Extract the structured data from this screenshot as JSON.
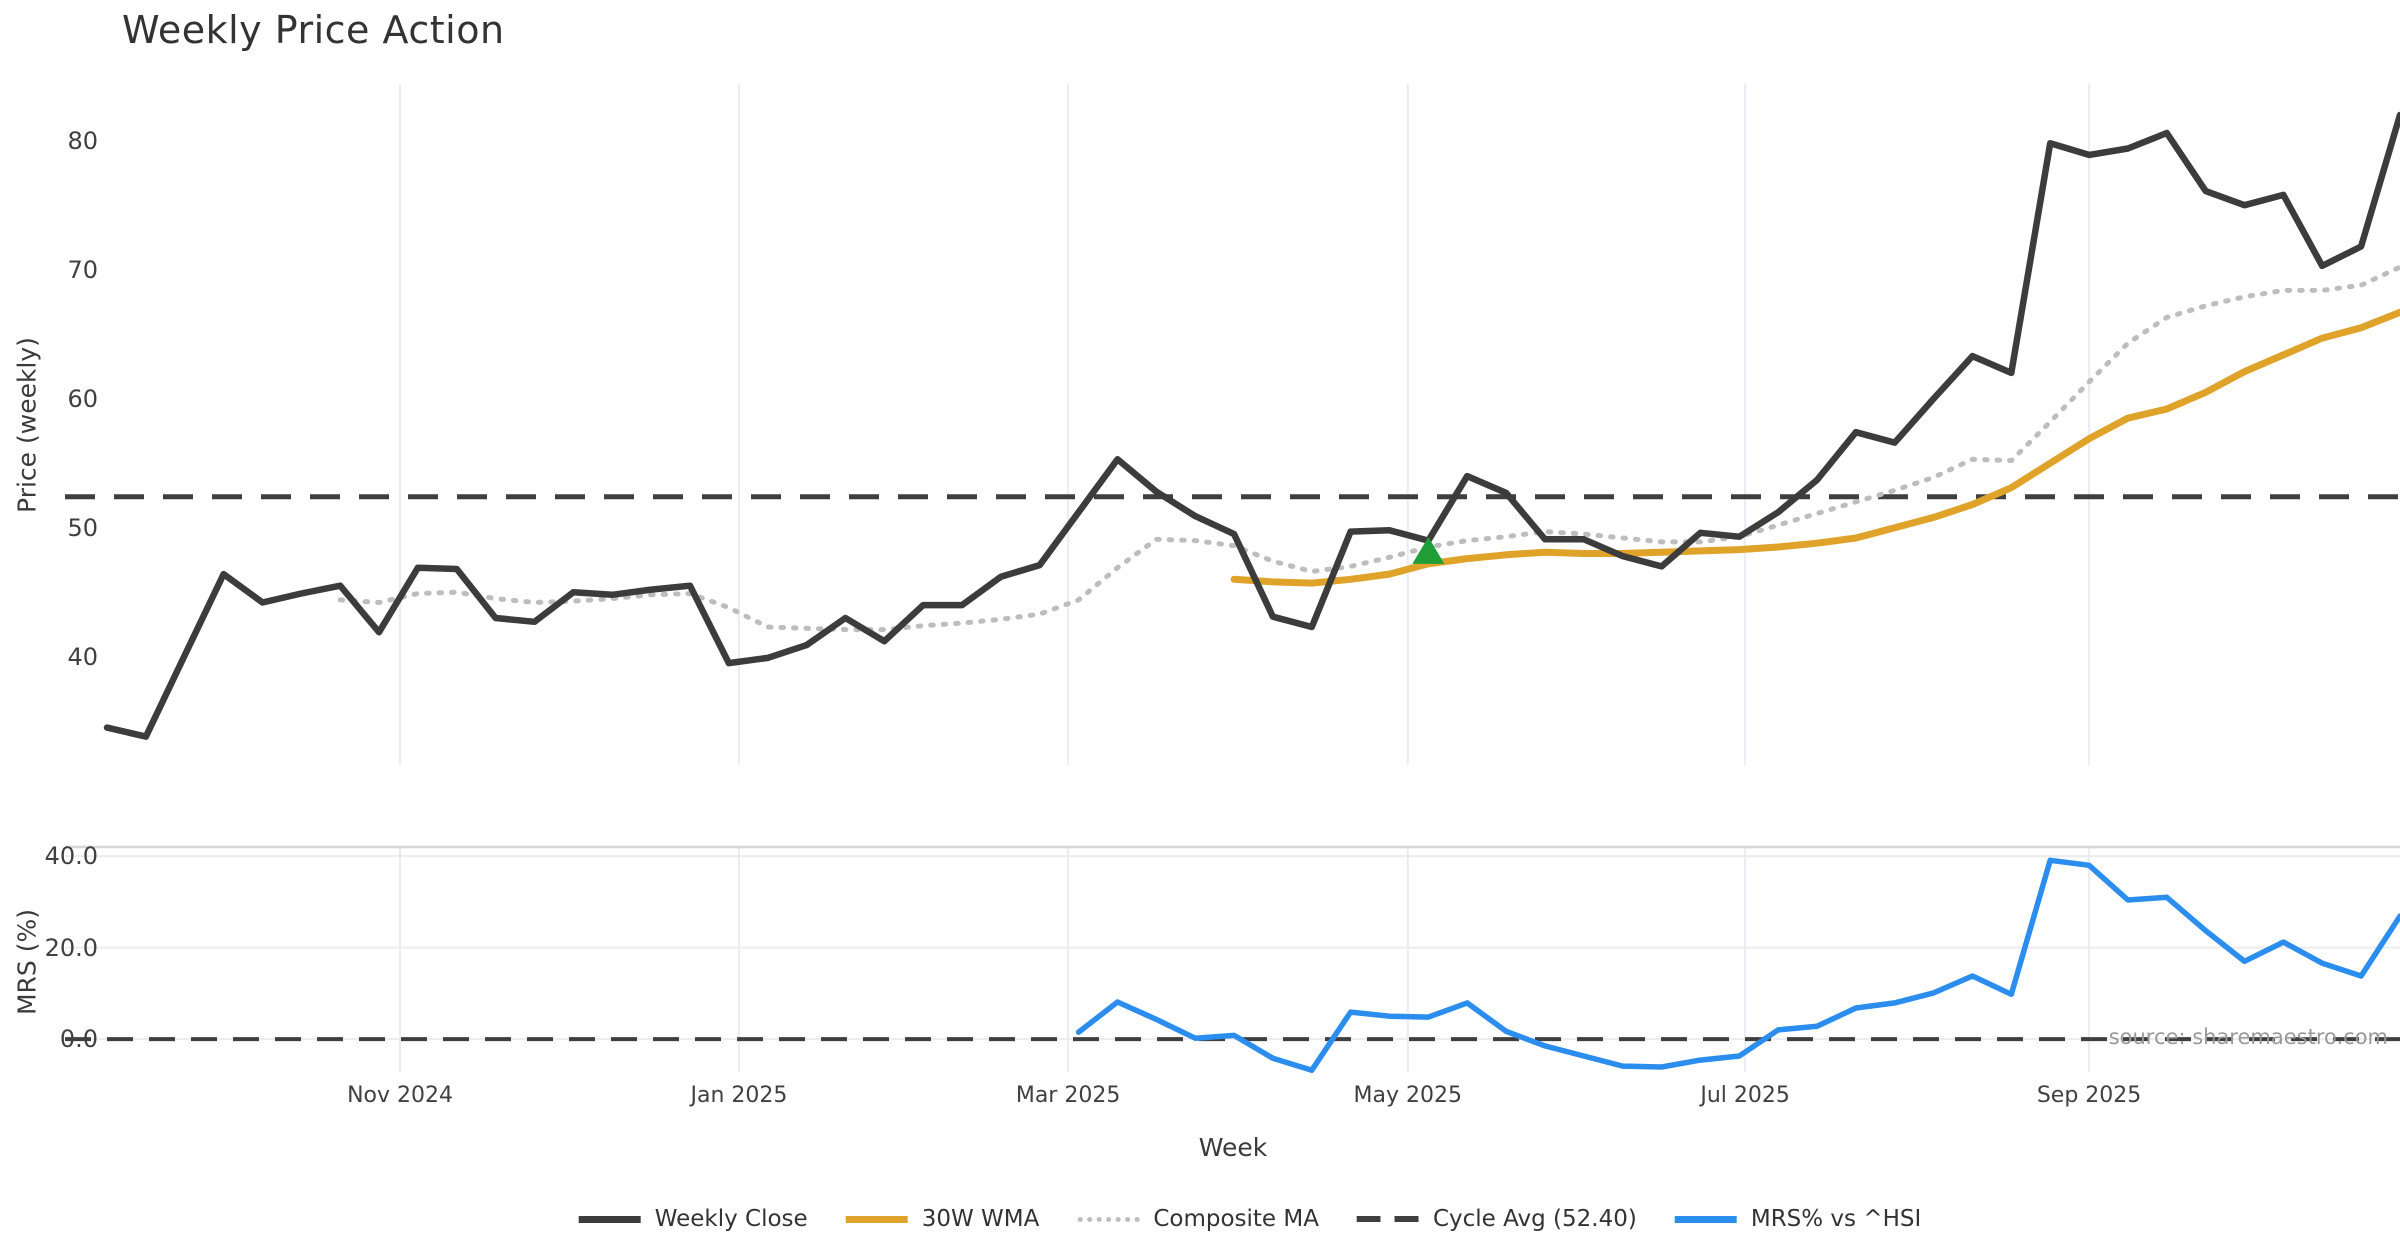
{
  "title": "Weekly Price Action",
  "watermark": "source: sharemaestro.com",
  "axes": {
    "price_axis_label": "Price (weekly)",
    "mrs_axis_label": "MRS (%)",
    "x_axis_label": "Week",
    "price_ticks": [
      80,
      70,
      60,
      50,
      40
    ],
    "mrs_ticks": [
      {
        "label": "40.0",
        "value": 40
      },
      {
        "label": "20.0",
        "value": 20
      },
      {
        "label": "0.0",
        "value": 0
      }
    ],
    "month_ticks": [
      {
        "label": "Nov 2024",
        "week": 7.54
      },
      {
        "label": "Jan 2025",
        "week": 16.26
      },
      {
        "label": "Mar 2025",
        "week": 24.73
      },
      {
        "label": "May 2025",
        "week": 33.47
      },
      {
        "label": "Jul 2025",
        "week": 42.15
      },
      {
        "label": "Sep 2025",
        "week": 51.0
      }
    ]
  },
  "legend": [
    {
      "label": "Weekly Close",
      "style": "solid",
      "color": "#3c3c3c"
    },
    {
      "label": "30W WMA",
      "style": "solid",
      "color": "#dfa32a"
    },
    {
      "label": "Composite MA",
      "style": "dotted",
      "color": "#bdbdbd"
    },
    {
      "label": "Cycle Avg (52.40)",
      "style": "dashed",
      "color": "#3f3f3f"
    },
    {
      "label": "MRS% vs ^HSI",
      "style": "solid",
      "color": "#2b8ded"
    }
  ],
  "colors": {
    "weekly_close": "#3c3c3c",
    "wma": "#dfa32a",
    "composite": "#bdbdbd",
    "cycle_avg": "#3f3f3f",
    "mrs": "#2b8ded",
    "marker": "#1f9e38",
    "grid_vertical": "#e9edf3",
    "grid_horizontal": "#ececec",
    "panel_spine": "#d6d6d6",
    "zero_dash": "#3f3f3f"
  },
  "chart_data": [
    {
      "type": "line",
      "panel": "price",
      "title": "Weekly Price Action",
      "xlabel": "Week",
      "ylabel": "Price (weekly)",
      "ylim": [
        31.6,
        84.4
      ],
      "grid": "vertical-months",
      "cycle_avg_value": 52.4,
      "series": [
        {
          "name": "Weekly Close",
          "start_week": 0,
          "values": [
            34.5,
            33.8,
            40.1,
            46.4,
            44.2,
            44.9,
            45.5,
            41.9,
            46.9,
            46.8,
            43.0,
            42.7,
            45.0,
            44.8,
            45.2,
            45.5,
            39.5,
            39.9,
            40.9,
            43.0,
            41.2,
            44.0,
            44.0,
            46.2,
            47.1,
            51.2,
            55.3,
            52.8,
            50.9,
            49.5,
            43.1,
            42.3,
            49.7,
            49.8,
            49.0,
            54.0,
            52.7,
            49.1,
            49.1,
            47.8,
            47.0,
            49.6,
            49.3,
            51.2,
            53.7,
            57.4,
            56.6,
            60.0,
            63.3,
            62.0,
            79.8,
            78.9,
            79.4,
            80.6,
            76.1,
            75.0,
            75.8,
            70.3,
            71.8,
            82.0
          ]
        },
        {
          "name": "30W WMA",
          "start_week": 29,
          "values": [
            46.0,
            45.8,
            45.7,
            46.0,
            46.4,
            47.2,
            47.6,
            47.9,
            48.1,
            48.0,
            48.0,
            48.1,
            48.2,
            48.3,
            48.5,
            48.8,
            49.2,
            50.0,
            50.8,
            51.8,
            53.1,
            55.0,
            56.9,
            58.5,
            59.2,
            60.5,
            62.1,
            63.4,
            64.7,
            65.5,
            66.7
          ]
        },
        {
          "name": "Composite MA",
          "start_week": 6,
          "values": [
            44.4,
            44.2,
            44.9,
            45.0,
            44.5,
            44.2,
            44.3,
            44.5,
            44.8,
            44.9,
            43.8,
            42.3,
            42.2,
            42.1,
            42.1,
            42.4,
            42.6,
            42.9,
            43.3,
            44.4,
            46.9,
            49.1,
            49.0,
            48.6,
            47.4,
            46.6,
            47.0,
            47.7,
            48.5,
            49.0,
            49.3,
            49.7,
            49.5,
            49.2,
            48.9,
            48.9,
            49.3,
            50.2,
            51.1,
            52.0,
            52.9,
            53.9,
            55.3,
            55.2,
            58.2,
            61.3,
            64.3,
            66.3,
            67.2,
            67.9,
            68.4,
            68.4,
            68.8,
            70.2
          ]
        }
      ],
      "markers": [
        {
          "name": "buy-signal",
          "shape": "triangle-up",
          "week": 34,
          "value": 48.2,
          "color": "#1f9e38"
        }
      ]
    },
    {
      "type": "line",
      "panel": "mrs",
      "ylabel": "MRS (%)",
      "ylim": [
        -7.2,
        42.0
      ],
      "zero_line": 0.0,
      "series": [
        {
          "name": "MRS% vs ^HSI",
          "start_week": 25,
          "values": [
            1.5,
            8.1,
            4.3,
            0.2,
            0.8,
            -4.2,
            -6.8,
            5.9,
            5.0,
            4.8,
            7.9,
            1.7,
            -1.5,
            -3.7,
            -5.9,
            -6.1,
            -4.6,
            -3.7,
            2.0,
            2.8,
            6.8,
            7.9,
            10.1,
            13.8,
            9.8,
            39.1,
            38.0,
            30.4,
            31.0,
            23.7,
            17.0,
            21.2,
            16.6,
            13.8,
            26.9
          ]
        }
      ]
    }
  ]
}
